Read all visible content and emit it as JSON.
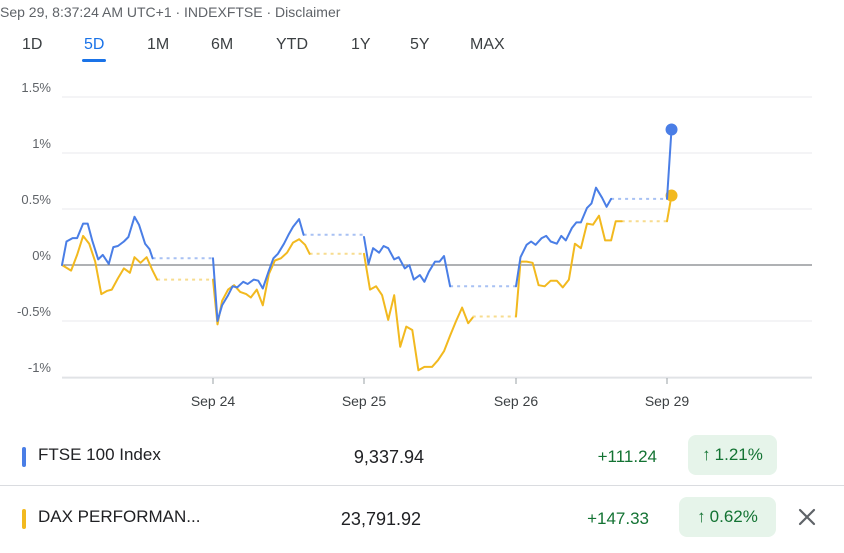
{
  "header": {
    "text": "Sep 29, 8:37:24 AM UTC+1 · INDEXFTSE · Disclaimer"
  },
  "tabs": [
    {
      "label": "1D",
      "active": false
    },
    {
      "label": "5D",
      "active": true
    },
    {
      "label": "1M",
      "active": false
    },
    {
      "label": "6M",
      "active": false
    },
    {
      "label": "YTD",
      "active": false
    },
    {
      "label": "1Y",
      "active": false
    },
    {
      "label": "5Y",
      "active": false
    },
    {
      "label": "MAX",
      "active": false
    }
  ],
  "chart_data": {
    "type": "line",
    "title": "",
    "xlabel": "",
    "ylabel": "",
    "y_unit": "%",
    "ylim": [
      -1.1,
      1.6
    ],
    "yticks": [
      1.5,
      1,
      0.5,
      0,
      -0.5,
      -1
    ],
    "ytick_labels": [
      "1.5%",
      "1%",
      "0.5%",
      "0%",
      "-0.5%",
      "-1%"
    ],
    "xticks": [
      "Sep 24",
      "Sep 25",
      "Sep 26",
      "Sep 29"
    ],
    "grid": true,
    "series": [
      {
        "name": "FTSE 100 Index",
        "color": "#4a7ee6",
        "segments": [
          [
            [
              0,
              0
            ],
            [
              0.03,
              0.21
            ],
            [
              0.07,
              0.24
            ],
            [
              0.1,
              0.24
            ],
            [
              0.14,
              0.37
            ],
            [
              0.17,
              0.37
            ],
            [
              0.2,
              0.22
            ],
            [
              0.24,
              0.05
            ],
            [
              0.27,
              0.09
            ],
            [
              0.31,
              0.01
            ],
            [
              0.34,
              0.16
            ],
            [
              0.37,
              0.17
            ],
            [
              0.41,
              0.21
            ],
            [
              0.44,
              0.25
            ],
            [
              0.48,
              0.43
            ],
            [
              0.51,
              0.36
            ],
            [
              0.55,
              0.19
            ],
            [
              0.58,
              0.14
            ],
            [
              0.6,
              0.06
            ]
          ],
          [
            [
              1.0,
              0.06
            ],
            [
              1.03,
              -0.5
            ],
            [
              1.06,
              -0.36
            ],
            [
              1.1,
              -0.27
            ],
            [
              1.13,
              -0.19
            ],
            [
              1.16,
              -0.2
            ],
            [
              1.2,
              -0.15
            ],
            [
              1.23,
              -0.17
            ],
            [
              1.27,
              -0.13
            ],
            [
              1.3,
              -0.14
            ],
            [
              1.33,
              -0.21
            ],
            [
              1.37,
              -0.05
            ],
            [
              1.4,
              0.06
            ],
            [
              1.43,
              0.1
            ],
            [
              1.47,
              0.19
            ],
            [
              1.5,
              0.27
            ],
            [
              1.53,
              0.34
            ],
            [
              1.57,
              0.41
            ],
            [
              1.6,
              0.27
            ]
          ],
          [
            [
              2.0,
              0.25
            ],
            [
              2.03,
              0.01
            ],
            [
              2.06,
              0.15
            ],
            [
              2.1,
              0.11
            ],
            [
              2.13,
              0.17
            ],
            [
              2.16,
              0.15
            ],
            [
              2.2,
              0.05
            ],
            [
              2.23,
              0.07
            ],
            [
              2.27,
              -0.03
            ],
            [
              2.3,
              0.0
            ],
            [
              2.33,
              -0.13
            ],
            [
              2.37,
              -0.09
            ],
            [
              2.4,
              -0.15
            ],
            [
              2.43,
              -0.06
            ],
            [
              2.47,
              0.03
            ],
            [
              2.5,
              0.03
            ],
            [
              2.53,
              0.08
            ],
            [
              2.57,
              -0.19
            ]
          ],
          [
            [
              3.0,
              -0.19
            ],
            [
              3.03,
              0.07
            ],
            [
              3.07,
              0.18
            ],
            [
              3.1,
              0.21
            ],
            [
              3.13,
              0.18
            ],
            [
              3.17,
              0.24
            ],
            [
              3.2,
              0.26
            ],
            [
              3.23,
              0.21
            ],
            [
              3.27,
              0.19
            ],
            [
              3.3,
              0.26
            ],
            [
              3.33,
              0.22
            ],
            [
              3.37,
              0.33
            ],
            [
              3.4,
              0.38
            ],
            [
              3.43,
              0.38
            ],
            [
              3.47,
              0.51
            ],
            [
              3.5,
              0.55
            ],
            [
              3.53,
              0.69
            ],
            [
              3.57,
              0.6
            ],
            [
              3.6,
              0.52
            ],
            [
              3.63,
              0.59
            ]
          ],
          [
            [
              4.0,
              0.59
            ],
            [
              4.03,
              1.21
            ]
          ]
        ],
        "gaps": [
          [
            [
              0.6,
              0.06
            ],
            [
              1.0,
              0.06
            ]
          ],
          [
            [
              1.6,
              0.27
            ],
            [
              2.0,
              0.27
            ]
          ],
          [
            [
              2.57,
              -0.19
            ],
            [
              3.0,
              -0.19
            ]
          ],
          [
            [
              3.63,
              0.59
            ],
            [
              4.0,
              0.59
            ]
          ]
        ],
        "last": [
          4.03,
          1.21
        ]
      },
      {
        "name": "DAX PERFORMANCE-INDEX",
        "color": "#f2b91f",
        "segments": [
          [
            [
              0,
              0
            ],
            [
              0.06,
              -0.05
            ],
            [
              0.1,
              0.09
            ],
            [
              0.14,
              0.26
            ],
            [
              0.18,
              0.19
            ],
            [
              0.22,
              0.03
            ],
            [
              0.26,
              -0.26
            ],
            [
              0.3,
              -0.23
            ],
            [
              0.33,
              -0.22
            ],
            [
              0.37,
              -0.12
            ],
            [
              0.41,
              -0.03
            ],
            [
              0.45,
              -0.07
            ],
            [
              0.48,
              0.07
            ],
            [
              0.52,
              0.02
            ],
            [
              0.56,
              0.07
            ],
            [
              0.6,
              -0.05
            ],
            [
              0.63,
              -0.13
            ]
          ],
          [
            [
              1.0,
              -0.13
            ],
            [
              1.03,
              -0.53
            ],
            [
              1.06,
              -0.32
            ],
            [
              1.1,
              -0.22
            ],
            [
              1.14,
              -0.18
            ],
            [
              1.18,
              -0.24
            ],
            [
              1.22,
              -0.26
            ],
            [
              1.25,
              -0.29
            ],
            [
              1.29,
              -0.22
            ],
            [
              1.33,
              -0.36
            ],
            [
              1.37,
              -0.08
            ],
            [
              1.41,
              0.04
            ],
            [
              1.45,
              0.06
            ],
            [
              1.49,
              0.11
            ],
            [
              1.53,
              0.2
            ],
            [
              1.57,
              0.23
            ],
            [
              1.61,
              0.18
            ],
            [
              1.64,
              0.1
            ]
          ],
          [
            [
              2.0,
              0.1
            ],
            [
              2.04,
              -0.22
            ],
            [
              2.08,
              -0.19
            ],
            [
              2.12,
              -0.27
            ],
            [
              2.16,
              -0.49
            ],
            [
              2.2,
              -0.27
            ],
            [
              2.24,
              -0.73
            ],
            [
              2.28,
              -0.55
            ],
            [
              2.32,
              -0.58
            ],
            [
              2.36,
              -0.94
            ],
            [
              2.4,
              -0.91
            ],
            [
              2.45,
              -0.91
            ],
            [
              2.49,
              -0.85
            ],
            [
              2.53,
              -0.77
            ],
            [
              2.57,
              -0.63
            ],
            [
              2.61,
              -0.5
            ],
            [
              2.65,
              -0.38
            ],
            [
              2.69,
              -0.52
            ],
            [
              2.72,
              -0.47
            ]
          ],
          [
            [
              3.0,
              -0.46
            ],
            [
              3.03,
              0.03
            ],
            [
              3.07,
              0.03
            ],
            [
              3.11,
              0.02
            ],
            [
              3.15,
              -0.18
            ],
            [
              3.19,
              -0.19
            ],
            [
              3.23,
              -0.14
            ],
            [
              3.27,
              -0.14
            ],
            [
              3.31,
              -0.2
            ],
            [
              3.35,
              -0.13
            ],
            [
              3.39,
              0.19
            ],
            [
              3.43,
              0.15
            ],
            [
              3.47,
              0.37
            ],
            [
              3.51,
              0.36
            ],
            [
              3.55,
              0.44
            ],
            [
              3.59,
              0.22
            ],
            [
              3.63,
              0.22
            ],
            [
              3.66,
              0.39
            ],
            [
              3.7,
              0.39
            ]
          ],
          [
            [
              4.0,
              0.39
            ],
            [
              4.03,
              0.62
            ]
          ]
        ],
        "gaps": [
          [
            [
              0.63,
              -0.13
            ],
            [
              1.0,
              -0.13
            ]
          ],
          [
            [
              1.64,
              0.1
            ],
            [
              2.0,
              0.1
            ]
          ],
          [
            [
              2.72,
              -0.46
            ],
            [
              3.0,
              -0.46
            ]
          ],
          [
            [
              3.7,
              0.39
            ],
            [
              4.0,
              0.39
            ]
          ]
        ],
        "last": [
          4.03,
          0.62
        ]
      }
    ]
  },
  "rows": [
    {
      "name": "FTSE 100 Index",
      "price": "9,337.94",
      "change": "+111.24",
      "percent": "1.21%",
      "color": "#4a7ee6",
      "icon": "arrow-up-icon"
    },
    {
      "name": "DAX PERFORMAN...",
      "price": "23,791.92",
      "change": "+147.33",
      "percent": "0.62%",
      "color": "#f2b91f",
      "icon": "arrow-up-icon",
      "close_icon": "close-icon"
    }
  ]
}
